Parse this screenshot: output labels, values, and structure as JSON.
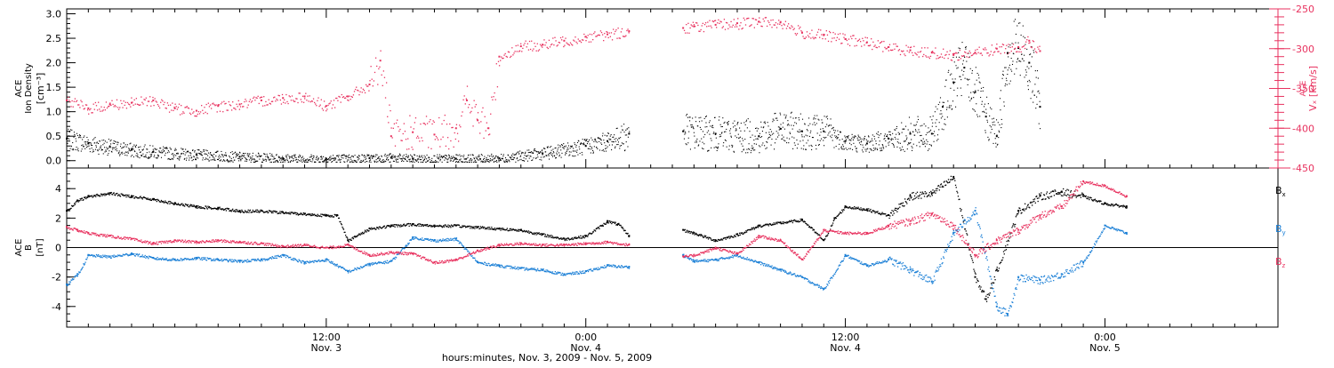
{
  "colors": {
    "black": "#000000",
    "pink": "#e8325f",
    "blue": "#1a7fd6"
  },
  "chart_data": [
    {
      "type": "scatter",
      "panel": "top",
      "left_axis": {
        "label_lines": [
          "ACE",
          "Ion Density"
        ],
        "unit": "[cm⁻³]",
        "ylim": [
          -0.15,
          3.1
        ],
        "ticks": [
          "0.0",
          "0.5",
          "1.0",
          "1.5",
          "2.0",
          "2.5",
          "3.0"
        ],
        "tick_values": [
          0,
          0.5,
          1,
          1.5,
          2,
          2.5,
          3
        ]
      },
      "right_axis": {
        "label": "Vₓ [km/s]",
        "label_prefix": "ACE",
        "ylim": [
          -450,
          -250
        ],
        "color": "#e8325f",
        "ticks": [
          "-250",
          "-300",
          "-350",
          "-400",
          "-450"
        ],
        "tick_values": [
          -250,
          -300,
          -350,
          -400,
          -450
        ]
      },
      "x_hours_range": [
        0,
        56
      ],
      "data_gap_hours": [
        26,
        28.5
      ],
      "series": [
        {
          "color": "#000000",
          "axis": "left",
          "points": [
            [
              0,
              0.45
            ],
            [
              1,
              0.35
            ],
            [
              2,
              0.28
            ],
            [
              3,
              0.22
            ],
            [
              4,
              0.18
            ],
            [
              6,
              0.12
            ],
            [
              8,
              0.08
            ],
            [
              10,
              0.05
            ],
            [
              12,
              0.04
            ],
            [
              14,
              0.05
            ],
            [
              15,
              0.06
            ],
            [
              16,
              0.04
            ],
            [
              18,
              0.04
            ],
            [
              20,
              0.05
            ],
            [
              22,
              0.15
            ],
            [
              24,
              0.3
            ],
            [
              25,
              0.4
            ],
            [
              26,
              0.55
            ],
            [
              28.5,
              0.6
            ],
            [
              30,
              0.55
            ],
            [
              32,
              0.5
            ],
            [
              33,
              0.65
            ],
            [
              34,
              0.6
            ],
            [
              35,
              0.6
            ],
            [
              36,
              0.4
            ],
            [
              37,
              0.35
            ],
            [
              38,
              0.45
            ],
            [
              39,
              0.55
            ],
            [
              40,
              0.55
            ],
            [
              40.5,
              1.1
            ],
            [
              41,
              1.6
            ],
            [
              41.5,
              1.9
            ],
            [
              42,
              1.4
            ],
            [
              42.5,
              0.9
            ],
            [
              43,
              0.5
            ],
            [
              43.5,
              2.2
            ],
            [
              44,
              2.3
            ],
            [
              44.5,
              2.0
            ],
            [
              45,
              1.1
            ]
          ]
        },
        {
          "color": "#e8325f",
          "axis": "right",
          "points": [
            [
              0,
              -365
            ],
            [
              1,
              -375
            ],
            [
              2,
              -370
            ],
            [
              3,
              -368
            ],
            [
              4,
              -365
            ],
            [
              5,
              -375
            ],
            [
              6,
              -378
            ],
            [
              7,
              -372
            ],
            [
              8,
              -370
            ],
            [
              9,
              -365
            ],
            [
              10,
              -362
            ],
            [
              11,
              -360
            ],
            [
              12,
              -372
            ],
            [
              13,
              -360
            ],
            [
              14,
              -345
            ],
            [
              14.5,
              -315
            ],
            [
              15,
              -410
            ],
            [
              16,
              -405
            ],
            [
              17,
              -408
            ],
            [
              18,
              -400
            ],
            [
              18.5,
              -365
            ],
            [
              19,
              -390
            ],
            [
              19.5,
              -400
            ],
            [
              20,
              -310
            ],
            [
              21,
              -297
            ],
            [
              22,
              -295
            ],
            [
              23,
              -290
            ],
            [
              24,
              -285
            ],
            [
              25,
              -282
            ],
            [
              26,
              -278
            ],
            [
              28.5,
              -274
            ],
            [
              29,
              -272
            ],
            [
              30,
              -270
            ],
            [
              31,
              -268
            ],
            [
              32,
              -266
            ],
            [
              33,
              -267
            ],
            [
              34,
              -280
            ],
            [
              35,
              -283
            ],
            [
              36,
              -288
            ],
            [
              37,
              -292
            ],
            [
              38,
              -298
            ],
            [
              39,
              -302
            ],
            [
              40,
              -305
            ],
            [
              41,
              -308
            ],
            [
              42,
              -305
            ],
            [
              43,
              -300
            ],
            [
              44,
              -298
            ],
            [
              44.5,
              -290
            ],
            [
              45,
              -303
            ]
          ]
        }
      ]
    },
    {
      "type": "scatter",
      "panel": "bottom",
      "left_axis": {
        "label_lines": [
          "ACE",
          "B"
        ],
        "unit": "[nT]",
        "ylim": [
          -5.4,
          5.4
        ],
        "ticks": [
          "4",
          "2",
          "0",
          "-2",
          "-4"
        ],
        "tick_values": [
          4,
          2,
          0,
          -2,
          -4
        ]
      },
      "x_hours_range": [
        0,
        56
      ],
      "data_gap_hours": [
        26,
        28.5
      ],
      "zero_line": true,
      "legend": [
        {
          "label": "B",
          "sub": "x",
          "color": "#000000"
        },
        {
          "label": "B",
          "sub": "y",
          "color": "#1a7fd6"
        },
        {
          "label": "B",
          "sub": "z",
          "color": "#e8325f"
        }
      ],
      "series": [
        {
          "name": "Bx",
          "color": "#000000",
          "points": [
            [
              0,
              2.5
            ],
            [
              0.5,
              3.2
            ],
            [
              1,
              3.5
            ],
            [
              2,
              3.7
            ],
            [
              3,
              3.5
            ],
            [
              4,
              3.3
            ],
            [
              5,
              3.0
            ],
            [
              6,
              2.8
            ],
            [
              7,
              2.7
            ],
            [
              8,
              2.5
            ],
            [
              9,
              2.5
            ],
            [
              10,
              2.4
            ],
            [
              11,
              2.3
            ],
            [
              12,
              2.2
            ],
            [
              12.5,
              2.2
            ],
            [
              13,
              0.5
            ],
            [
              14,
              1.3
            ],
            [
              15,
              1.5
            ],
            [
              16,
              1.6
            ],
            [
              17,
              1.5
            ],
            [
              18,
              1.5
            ],
            [
              19,
              1.4
            ],
            [
              20,
              1.3
            ],
            [
              21,
              1.2
            ],
            [
              22,
              0.9
            ],
            [
              23,
              0.6
            ],
            [
              24,
              0.8
            ],
            [
              25,
              1.8
            ],
            [
              25.5,
              1.6
            ],
            [
              26,
              0.8
            ],
            [
              28.5,
              1.2
            ],
            [
              29,
              1.0
            ],
            [
              30,
              0.5
            ],
            [
              31,
              0.9
            ],
            [
              32,
              1.5
            ],
            [
              33,
              1.7
            ],
            [
              34,
              1.9
            ],
            [
              35,
              0.5
            ],
            [
              35.5,
              2.0
            ],
            [
              36,
              2.8
            ],
            [
              37,
              2.6
            ],
            [
              38,
              2.2
            ],
            [
              39,
              3.5
            ],
            [
              40,
              3.7
            ],
            [
              41,
              4.8
            ],
            [
              42,
              -2.0
            ],
            [
              42.5,
              -3.5
            ],
            [
              43,
              -1.5
            ],
            [
              44,
              2.5
            ],
            [
              45,
              3.5
            ],
            [
              46,
              3.8
            ],
            [
              47,
              3.5
            ],
            [
              48,
              3.0
            ],
            [
              49,
              2.8
            ]
          ]
        },
        {
          "name": "By",
          "color": "#1a7fd6",
          "points": [
            [
              0,
              -2.5
            ],
            [
              0.5,
              -1.8
            ],
            [
              1,
              -0.5
            ],
            [
              2,
              -0.6
            ],
            [
              3,
              -0.4
            ],
            [
              4,
              -0.7
            ],
            [
              5,
              -0.8
            ],
            [
              6,
              -0.7
            ],
            [
              7,
              -0.8
            ],
            [
              8,
              -0.9
            ],
            [
              9,
              -0.8
            ],
            [
              10,
              -0.5
            ],
            [
              11,
              -1.0
            ],
            [
              12,
              -0.8
            ],
            [
              13,
              -1.6
            ],
            [
              14,
              -1.1
            ],
            [
              15,
              -0.9
            ],
            [
              16,
              0.7
            ],
            [
              17,
              0.5
            ],
            [
              18,
              0.6
            ],
            [
              19,
              -1.0
            ],
            [
              20,
              -1.2
            ],
            [
              21,
              -1.4
            ],
            [
              22,
              -1.5
            ],
            [
              23,
              -1.8
            ],
            [
              24,
              -1.6
            ],
            [
              25,
              -1.2
            ],
            [
              26,
              -1.3
            ],
            [
              28.5,
              -0.5
            ],
            [
              29,
              -0.9
            ],
            [
              30,
              -0.8
            ],
            [
              31,
              -0.5
            ],
            [
              32,
              -1.0
            ],
            [
              33,
              -1.5
            ],
            [
              34,
              -2.0
            ],
            [
              35,
              -2.8
            ],
            [
              36,
              -0.5
            ],
            [
              37,
              -1.2
            ],
            [
              38,
              -0.8
            ],
            [
              39,
              -1.5
            ],
            [
              40,
              -2.3
            ],
            [
              41,
              1.0
            ],
            [
              42,
              2.5
            ],
            [
              43,
              -4.0
            ],
            [
              43.5,
              -4.5
            ],
            [
              44,
              -2.0
            ],
            [
              45,
              -2.2
            ],
            [
              46,
              -1.8
            ],
            [
              47,
              -1.0
            ],
            [
              48,
              1.5
            ],
            [
              49,
              1.0
            ]
          ]
        },
        {
          "name": "Bz",
          "color": "#e8325f",
          "points": [
            [
              0,
              1.4
            ],
            [
              0.5,
              1.2
            ],
            [
              1,
              1.0
            ],
            [
              2,
              0.8
            ],
            [
              3,
              0.6
            ],
            [
              4,
              0.3
            ],
            [
              5,
              0.5
            ],
            [
              6,
              0.4
            ],
            [
              7,
              0.5
            ],
            [
              8,
              0.4
            ],
            [
              9,
              0.3
            ],
            [
              10,
              0.1
            ],
            [
              11,
              0.2
            ],
            [
              12,
              0.0
            ],
            [
              13,
              0.2
            ],
            [
              14,
              -0.5
            ],
            [
              15,
              -0.3
            ],
            [
              16,
              -0.4
            ],
            [
              17,
              -1.0
            ],
            [
              18,
              -0.8
            ],
            [
              19,
              -0.2
            ],
            [
              20,
              0.2
            ],
            [
              21,
              0.3
            ],
            [
              22,
              0.2
            ],
            [
              23,
              0.2
            ],
            [
              24,
              0.3
            ],
            [
              25,
              0.4
            ],
            [
              26,
              0.2
            ],
            [
              28.5,
              -0.6
            ],
            [
              29,
              -0.5
            ],
            [
              30,
              0.0
            ],
            [
              31,
              -0.4
            ],
            [
              32,
              0.8
            ],
            [
              33,
              0.5
            ],
            [
              34,
              -0.8
            ],
            [
              35,
              1.2
            ],
            [
              36,
              1.0
            ],
            [
              37,
              1.0
            ],
            [
              38,
              1.5
            ],
            [
              39,
              1.8
            ],
            [
              40,
              2.3
            ],
            [
              41,
              1.5
            ],
            [
              42,
              -0.5
            ],
            [
              43,
              0.5
            ],
            [
              44,
              1.2
            ],
            [
              45,
              2.2
            ],
            [
              46,
              2.8
            ],
            [
              47,
              4.5
            ],
            [
              48,
              4.2
            ],
            [
              49,
              3.5
            ]
          ]
        }
      ]
    }
  ],
  "x_axis": {
    "ticks": [
      {
        "hour": 12,
        "time": "12:00",
        "day": "Nov. 3"
      },
      {
        "hour": 24,
        "time": "0:00",
        "day": "Nov. 4"
      },
      {
        "hour": 36,
        "time": "12:00",
        "day": "Nov. 4"
      },
      {
        "hour": 48,
        "time": "0:00",
        "day": "Nov. 5"
      }
    ],
    "title": "hours:minutes, Nov.  3, 2009 - Nov.  5, 2009"
  }
}
